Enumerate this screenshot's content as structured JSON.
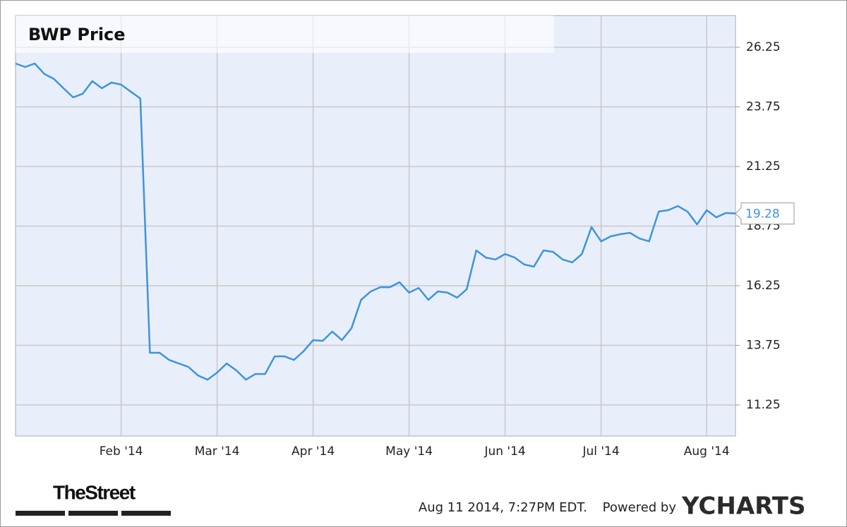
{
  "chart_data": {
    "type": "line",
    "title": "BWP Price",
    "categories": [
      null,
      null,
      null,
      null,
      null,
      null,
      null,
      null,
      null,
      null,
      null,
      "Feb '14",
      null,
      null,
      null,
      null,
      null,
      null,
      null,
      null,
      null,
      "Mar '14",
      null,
      null,
      null,
      null,
      null,
      null,
      null,
      null,
      null,
      "Apr '14",
      null,
      null,
      null,
      null,
      null,
      null,
      null,
      null,
      null,
      "May '14",
      null,
      null,
      null,
      null,
      null,
      null,
      null,
      null,
      null,
      "Jun '14",
      null,
      null,
      null,
      null,
      null,
      null,
      null,
      null,
      null,
      "Jul '14",
      null,
      null,
      null,
      null,
      null,
      null,
      null,
      null,
      null,
      null,
      "Aug '14",
      null,
      null,
      null
    ],
    "series": [
      {
        "name": "BWP",
        "color": "#3d93e0",
        "values": [
          25.57,
          25.42,
          25.57,
          25.13,
          24.92,
          24.53,
          24.15,
          24.3,
          24.83,
          24.53,
          24.77,
          24.68,
          24.39,
          24.1,
          13.44,
          13.44,
          13.14,
          12.99,
          12.85,
          12.49,
          12.31,
          12.61,
          12.99,
          12.7,
          12.31,
          12.55,
          12.55,
          13.29,
          13.29,
          13.14,
          13.5,
          13.97,
          13.94,
          14.33,
          13.97,
          14.47,
          15.66,
          16.01,
          16.19,
          16.19,
          16.4,
          15.96,
          16.16,
          15.66,
          16.01,
          15.96,
          15.75,
          16.1,
          17.73,
          17.43,
          17.35,
          17.58,
          17.43,
          17.14,
          17.05,
          17.73,
          17.67,
          17.35,
          17.23,
          17.58,
          18.71,
          18.11,
          18.32,
          18.41,
          18.47,
          18.23,
          18.11,
          19.36,
          19.42,
          19.59,
          19.36,
          18.82,
          19.42,
          19.12,
          19.3,
          19.28
        ]
      }
    ],
    "ylim": [
      9.95,
      27.58
    ],
    "yticks": [
      11.25,
      13.75,
      16.25,
      18.75,
      21.25,
      23.75,
      26.25
    ],
    "grid": true,
    "timestamp": "Aug 11 2014, 7:27PM EDT.",
    "powered_by": "Powered by",
    "brand": "YCHARTS",
    "source": "TheStreet"
  }
}
